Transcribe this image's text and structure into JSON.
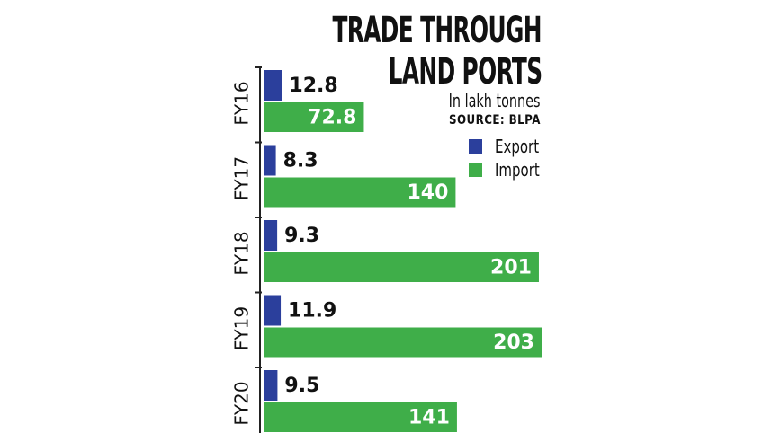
{
  "chart_data": {
    "type": "bar",
    "orientation": "horizontal",
    "title": "TRADE THROUGH LAND PORTS",
    "title_lines": [
      "TRADE THROUGH",
      "LAND PORTS"
    ],
    "subtitle": "In lakh tonnes",
    "source": "SOURCE: BLPA",
    "categories": [
      "FY16",
      "FY17",
      "FY18",
      "FY19",
      "FY20"
    ],
    "series": [
      {
        "name": "Export",
        "color": "#2b3f9c",
        "values": [
          12.8,
          8.3,
          9.3,
          11.9,
          9.5
        ],
        "labels": [
          "12.8",
          "8.3",
          "9.3",
          "11.9",
          "9.5"
        ]
      },
      {
        "name": "Import",
        "color": "#3fae49",
        "values": [
          72.8,
          140,
          201,
          203,
          141
        ],
        "labels": [
          "72.8",
          "140",
          "201",
          "203",
          "141"
        ]
      }
    ],
    "xlim": [
      0,
      203
    ],
    "grid": false,
    "legend_position": "top-right"
  }
}
